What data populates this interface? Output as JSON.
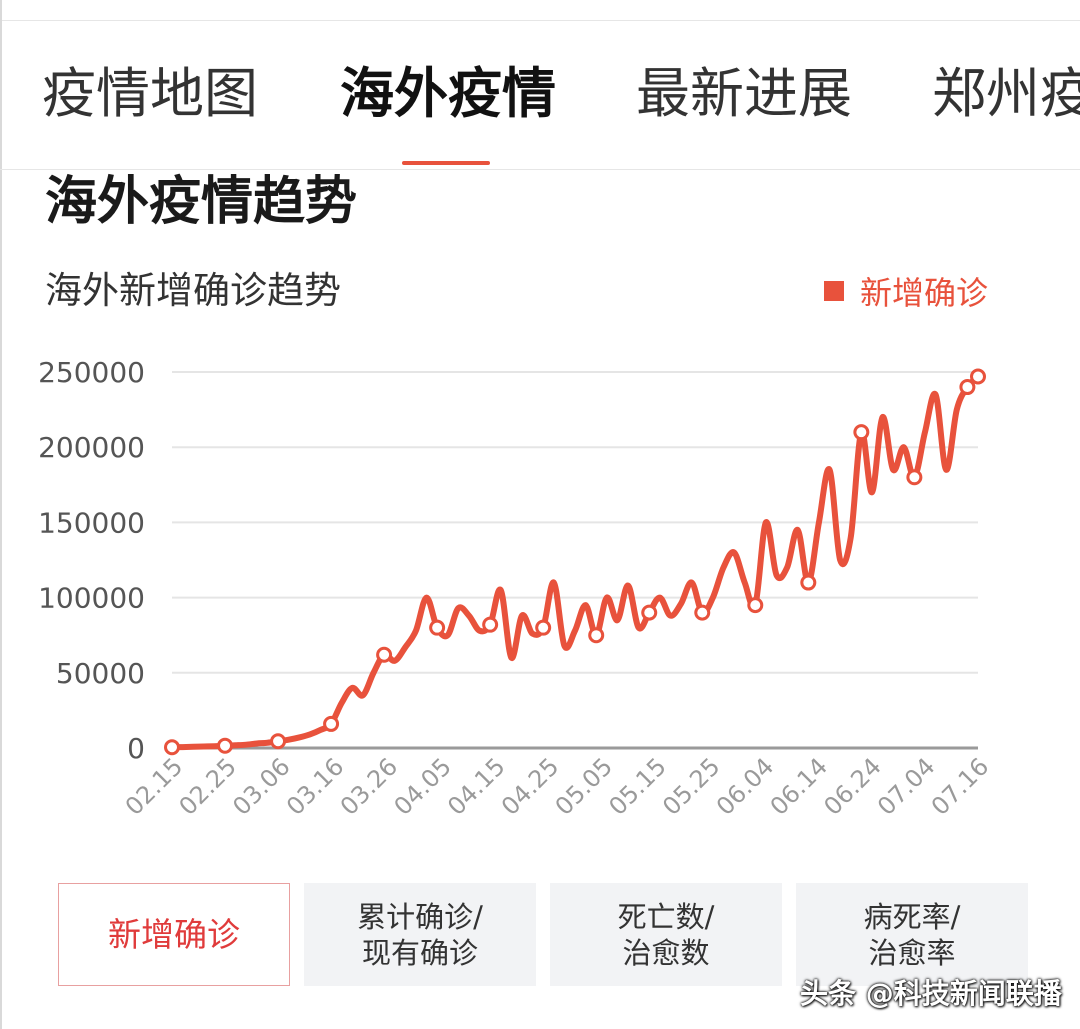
{
  "tabs": [
    {
      "label": "疫情地图",
      "active": false
    },
    {
      "label": "海外疫情",
      "active": true
    },
    {
      "label": "最新进展",
      "active": false
    },
    {
      "label": "郑州疫",
      "active": false
    }
  ],
  "section_title": "海外疫情趋势",
  "colors": {
    "accent": "#e8523c",
    "grid": "#e5e5e5",
    "axis": "#9a9a9a",
    "tick_text": "#555555"
  },
  "chart_data": {
    "type": "line",
    "title": "海外新增确诊趋势",
    "legend": [
      "新增确诊"
    ],
    "legend_position": "top-right",
    "ylim": [
      0,
      250000
    ],
    "yticks": [
      0,
      50000,
      100000,
      150000,
      200000,
      250000
    ],
    "ytick_labels": [
      "0",
      "50000",
      "100000",
      "150000",
      "200000",
      "250000"
    ],
    "xtick_labels": [
      "02.15",
      "02.25",
      "03.06",
      "03.16",
      "03.26",
      "04.05",
      "04.15",
      "04.25",
      "05.05",
      "05.15",
      "05.25",
      "06.04",
      "06.14",
      "06.24",
      "07.04",
      "07.16"
    ],
    "grid": true,
    "x": [
      "02.15",
      "02.17",
      "02.19",
      "02.21",
      "02.23",
      "02.25",
      "02.27",
      "02.29",
      "03.02",
      "03.04",
      "03.06",
      "03.08",
      "03.10",
      "03.12",
      "03.14",
      "03.16",
      "03.18",
      "03.20",
      "03.22",
      "03.24",
      "03.26",
      "03.28",
      "03.30",
      "04.01",
      "04.03",
      "04.05",
      "04.07",
      "04.09",
      "04.11",
      "04.13",
      "04.15",
      "04.17",
      "04.19",
      "04.21",
      "04.23",
      "04.25",
      "04.27",
      "04.29",
      "05.01",
      "05.03",
      "05.05",
      "05.07",
      "05.09",
      "05.11",
      "05.13",
      "05.15",
      "05.17",
      "05.19",
      "05.21",
      "05.23",
      "05.25",
      "05.27",
      "05.29",
      "05.31",
      "06.02",
      "06.04",
      "06.06",
      "06.08",
      "06.10",
      "06.12",
      "06.14",
      "06.16",
      "06.18",
      "06.20",
      "06.22",
      "06.24",
      "06.26",
      "06.28",
      "06.30",
      "07.02",
      "07.04",
      "07.06",
      "07.08",
      "07.10",
      "07.12",
      "07.14",
      "07.16"
    ],
    "series": [
      {
        "name": "新增确诊",
        "values": [
          500,
          600,
          800,
          1000,
          1200,
          1500,
          1800,
          2200,
          3000,
          3500,
          4500,
          5500,
          7000,
          9000,
          12000,
          16000,
          30000,
          40000,
          35000,
          50000,
          62000,
          58000,
          67000,
          78000,
          100000,
          80000,
          75000,
          93000,
          88000,
          78000,
          82000,
          105000,
          60000,
          88000,
          76000,
          80000,
          110000,
          68000,
          78000,
          95000,
          75000,
          100000,
          85000,
          108000,
          80000,
          90000,
          100000,
          88000,
          96000,
          110000,
          90000,
          100000,
          120000,
          130000,
          110000,
          95000,
          150000,
          115000,
          120000,
          145000,
          110000,
          150000,
          185000,
          125000,
          140000,
          210000,
          170000,
          220000,
          185000,
          200000,
          180000,
          210000,
          235000,
          185000,
          225000,
          240000,
          247000
        ]
      }
    ]
  },
  "buttons": [
    {
      "label": "新增确诊",
      "active": true
    },
    {
      "label": "累计确诊/\n现有确诊",
      "active": false
    },
    {
      "label": "死亡数/\n治愈数",
      "active": false
    },
    {
      "label": "病死率/\n治愈率",
      "active": false
    }
  ],
  "watermark": "头条 @科技新闻联播"
}
